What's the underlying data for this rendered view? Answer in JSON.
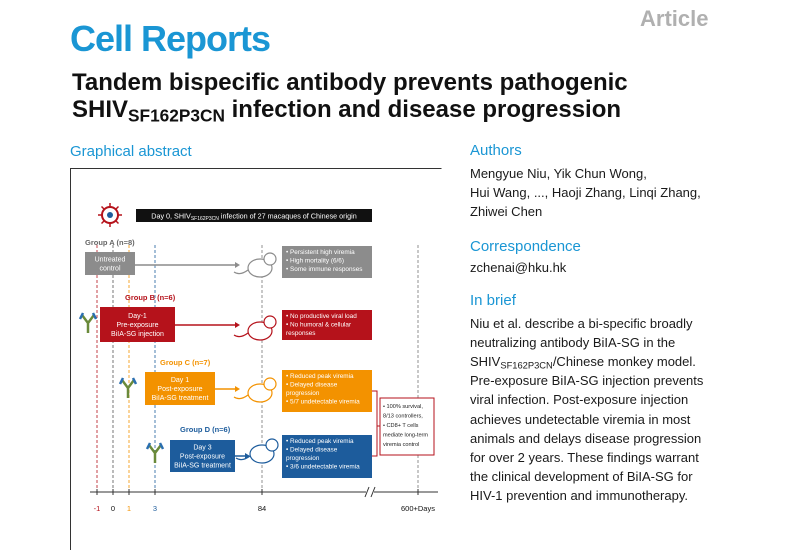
{
  "header": {
    "journal": "Cell Reports",
    "article_type": "Article"
  },
  "title": {
    "line1": "Tandem bispecific antibody prevents pathogenic",
    "line2": [
      "SHIV",
      "SF162P3CN",
      " infection and disease progression"
    ]
  },
  "graphical_abstract": {
    "heading": "Graphical abstract",
    "banner": [
      "Day 0, SHIV",
      "SF162P3CN",
      " infection of 27 macaques of Chinese origin"
    ],
    "groups": [
      {
        "label": "Group A (n=8)",
        "treatment": [
          "Untreated",
          "control"
        ],
        "outcomes": [
          "• Persistent high viremia",
          "• High mortality (6/6)",
          "• Some immune responses"
        ]
      },
      {
        "label": "Group B (n=6)",
        "treatment": [
          "Day-1",
          "Pre-exposure",
          "BiIA-SG injection"
        ],
        "outcomes": [
          "• No productive viral load",
          "• No humoral & cellular",
          "responses"
        ]
      },
      {
        "label": "Group C (n=7)",
        "treatment": [
          "Day 1",
          "Post-exposure",
          "BiIA-SG treatment"
        ],
        "outcomes": [
          "• Reduced peak viremia",
          "• Delayed disease",
          "progression",
          "• 5/7 undetectable viremia"
        ]
      },
      {
        "label": "Group D (n=6)",
        "treatment": [
          "Day 3",
          "Post-exposure",
          "BiIA-SG treatment"
        ],
        "outcomes": [
          "• Reduced peak viremia",
          "• Delayed disease",
          "progression",
          "• 3/6 undetectable viremia"
        ]
      }
    ],
    "summary": [
      "• 100% survival,",
      "8/13 controllers,",
      "• CD8+ T cells",
      "mediate long-term",
      "viremia control"
    ],
    "timeline": [
      "-1",
      "0",
      "1",
      "3",
      "84",
      "600+Days"
    ]
  },
  "authors": {
    "heading": "Authors",
    "lines": [
      "Mengyue Niu, Yik Chun Wong,",
      "Hui Wang, ..., Haoji Zhang, Linqi Zhang,",
      "Zhiwei Chen"
    ]
  },
  "correspondence": {
    "heading": "Correspondence",
    "email": "zchenai@hku.hk"
  },
  "in_brief": {
    "heading": "In brief",
    "lines": [
      "Niu et al. describe a bi-specific broadly",
      "neutralizing antibody BiIA-SG in the",
      [
        "SHIV",
        "SF162P3CN",
        "/Chinese monkey model."
      ],
      "Pre-exposure BiIA-SG injection prevents",
      "viral infection. Post-exposure injection",
      "achieves undetectable viremia in most",
      "animals and delays disease progression",
      "for over 2 years. These findings warrant",
      "the clinical development of BiIA-SG for",
      "HIV-1 prevention and immunotherapy."
    ]
  }
}
